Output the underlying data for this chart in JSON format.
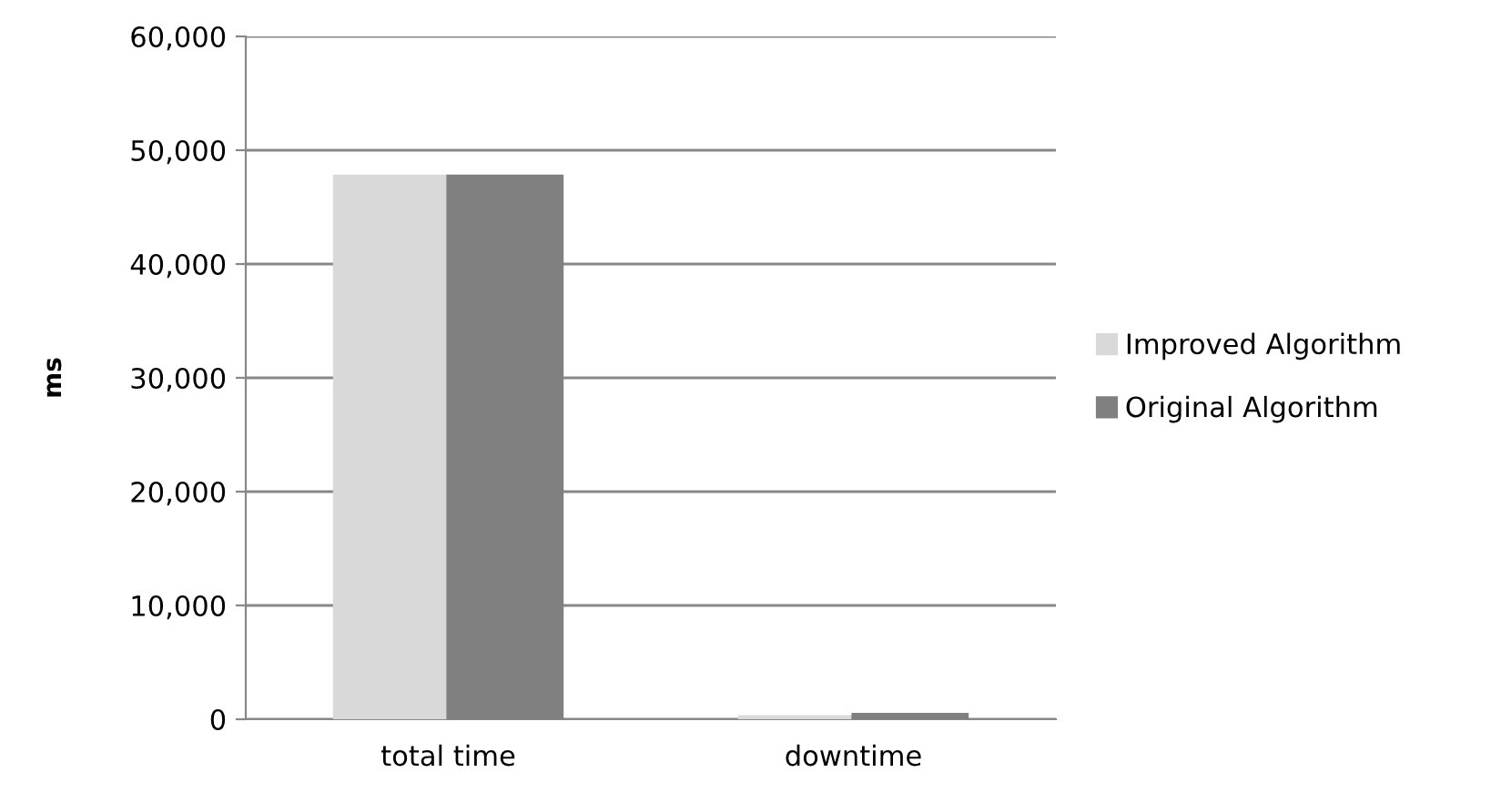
{
  "chart_data": {
    "type": "bar",
    "ylabel": "ms",
    "categories": [
      "total time",
      "downtime"
    ],
    "series": [
      {
        "name": "Improved Algorithm",
        "color": "#d9d9d9",
        "values": [
          47700,
          200
        ]
      },
      {
        "name": "Original Algorithm",
        "color": "#808080",
        "values": [
          47700,
          400
        ]
      }
    ],
    "ylim": [
      0,
      60000
    ],
    "yticks": [
      {
        "value": 0,
        "label": "0"
      },
      {
        "value": 10000,
        "label": "10,000"
      },
      {
        "value": 20000,
        "label": "20,000"
      },
      {
        "value": 30000,
        "label": "30,000"
      },
      {
        "value": 40000,
        "label": "40,000"
      },
      {
        "value": 50000,
        "label": "50,000"
      },
      {
        "value": 60000,
        "label": "60,000"
      }
    ],
    "grid": "y",
    "legend": "right"
  }
}
